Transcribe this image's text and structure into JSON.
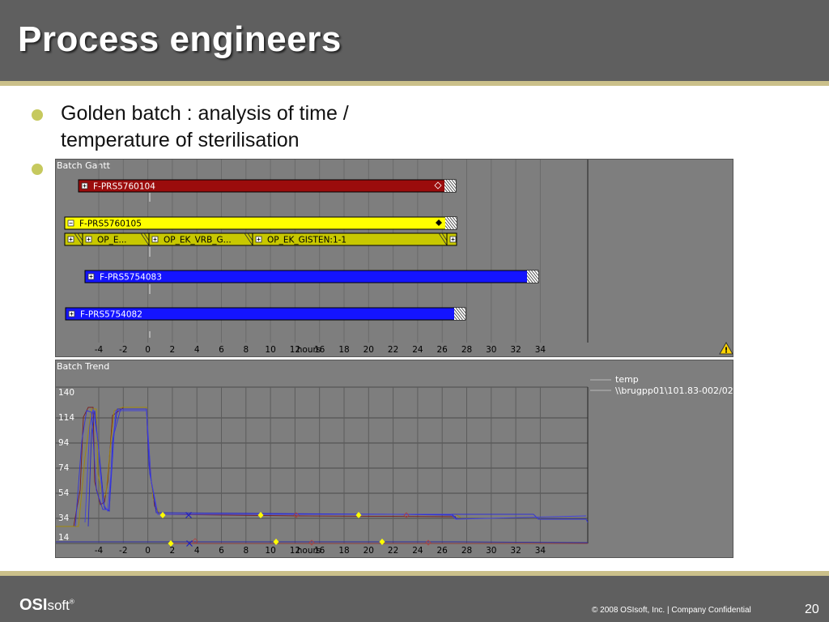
{
  "slide": {
    "title": "Process engineers",
    "bullet1_line1": "Golden batch : analysis of time /",
    "bullet1_line2": "temperature of sterilisation"
  },
  "gantt": {
    "title": "Batch Gantt",
    "hours_label": "hours",
    "ticks": [
      "-4",
      "-2",
      "0",
      "2",
      "4",
      "6",
      "8",
      "10",
      "12",
      "16",
      "18",
      "20",
      "22",
      "24",
      "26",
      "28",
      "30",
      "32",
      "34"
    ],
    "rows": [
      {
        "label": "F-PRS5760104",
        "color": "#9b0c0c",
        "text_color": "#ffffff",
        "expander": "⊞"
      },
      {
        "label": "F-PRS5760105",
        "color": "#ffff00",
        "text_color": "#000000",
        "expander": "⊟"
      },
      {
        "label": "F-PRS5754083",
        "color": "#1414ff",
        "text_color": "#ffffff",
        "expander": "⊞"
      },
      {
        "label": "F-PRS5754082",
        "color": "#1414ff",
        "text_color": "#ffffff",
        "expander": "⊞"
      }
    ],
    "subrows": [
      {
        "label": "OP_E..."
      },
      {
        "label": "OP_EK_VRB_G..."
      },
      {
        "label": "OP_EK_GISTEN:1-1"
      }
    ],
    "warning_icon": "warning-icon"
  },
  "trend": {
    "title": "Batch Trend",
    "legend_name": "temp",
    "legend_path": "\\\\brugpp01\\101.83-002/02",
    "y_ticks": [
      "140",
      "114",
      "94",
      "74",
      "54",
      "34",
      "14"
    ],
    "x_ticks": [
      "-4",
      "-2",
      "0",
      "2",
      "4",
      "6",
      "8",
      "10",
      "12",
      "16",
      "18",
      "20",
      "22",
      "24",
      "26",
      "28",
      "30",
      "32",
      "34"
    ],
    "hours_label": "hours"
  },
  "footer": {
    "logo_bold": "OSI",
    "logo_soft": "soft",
    "logo_mark": "®",
    "copyright": "© 2008 OSIsoft, Inc.  |  Company Confidential",
    "page": "20"
  },
  "colors": {
    "header_bg": "#5f5f5f",
    "accent": "#cbc08a",
    "bullet": "#c6c95e",
    "panel_bg": "#7e7e7e"
  }
}
